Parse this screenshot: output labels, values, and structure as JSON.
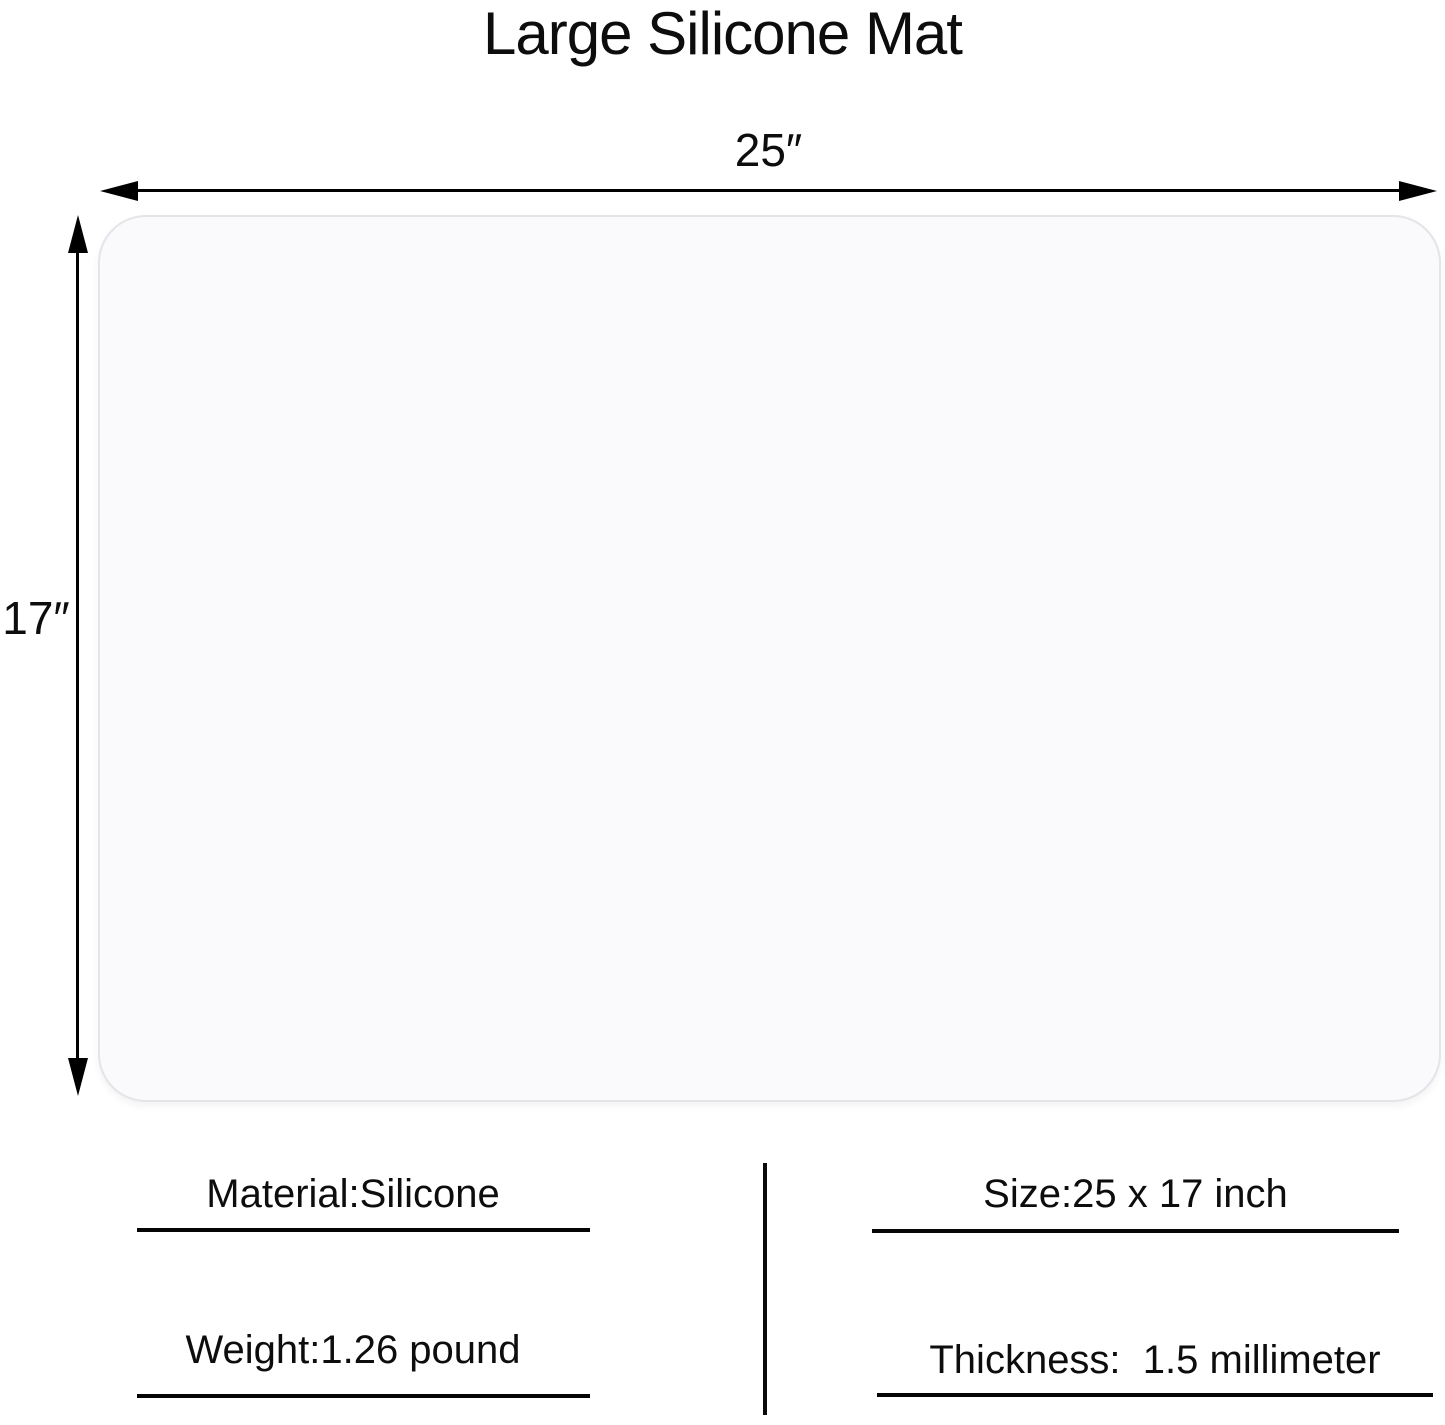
{
  "title": "Large Silicone Mat",
  "dimensions": {
    "width_label": "25″",
    "height_label": "17″"
  },
  "specs": {
    "material": "Material:Silicone",
    "weight": "Weight:1.26 pound",
    "size": "Size:25 x 17 inch",
    "thickness": "Thickness:  1.5 millimeter"
  },
  "colors": {
    "background": "#ffffff",
    "mat_fill": "#fafafc",
    "mat_border": "#e4e4e9",
    "line": "#000000",
    "text": "#0d0d0d"
  }
}
